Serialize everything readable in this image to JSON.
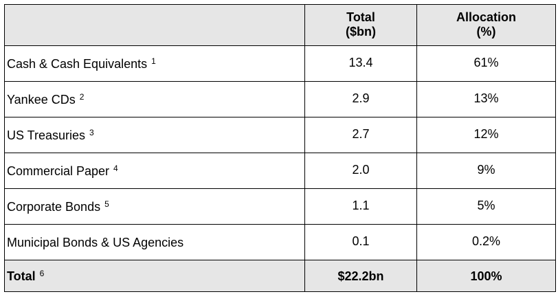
{
  "table": {
    "header": {
      "col1": "",
      "col2_line1": "Total",
      "col2_line2": "($bn)",
      "col3_line1": "Allocation",
      "col3_line2": "(%)"
    },
    "rows": [
      {
        "label": "Cash & Cash Equivalents",
        "footnote": "1",
        "total": "13.4",
        "allocation": "61%"
      },
      {
        "label": "Yankee CDs",
        "footnote": "2",
        "total": "2.9",
        "allocation": "13%"
      },
      {
        "label": "US Treasuries",
        "footnote": "3",
        "total": "2.7",
        "allocation": "12%"
      },
      {
        "label": "Commercial Paper",
        "footnote": "4",
        "total": "2.0",
        "allocation": "9%"
      },
      {
        "label": "Corporate Bonds",
        "footnote": "5",
        "total": "1.1",
        "allocation": "5%"
      },
      {
        "label": "Municipal Bonds & US Agencies",
        "footnote": "",
        "total": "0.1",
        "allocation": "0.2%"
      }
    ],
    "total_row": {
      "label": "Total",
      "footnote": "6",
      "total": "$22.2bn",
      "allocation": "100%"
    }
  },
  "colors": {
    "header_background": "#e6e6e6",
    "total_background": "#e6e6e6",
    "border": "#000000"
  }
}
